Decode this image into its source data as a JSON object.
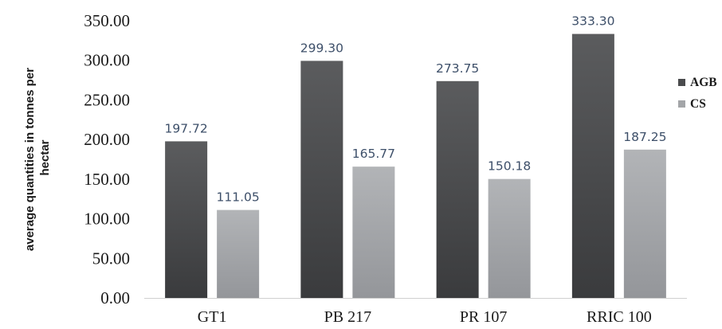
{
  "chart_data": {
    "type": "bar",
    "title": "",
    "xlabel": "",
    "ylabel": [
      "average quantities in tonnes per",
      "hectar"
    ],
    "categories": [
      "GT1",
      "PB 217",
      "PR 107",
      "RRIC 100"
    ],
    "series": [
      {
        "name": "AGB",
        "color": "#4a4b4d",
        "values": [
          197.72,
          299.3,
          273.75,
          333.3
        ],
        "labels": [
          "197.72",
          "299.30",
          "273.75",
          "333.30"
        ]
      },
      {
        "name": "CS",
        "color": "#a3a5a8",
        "values": [
          111.05,
          165.77,
          150.18,
          187.25
        ],
        "labels": [
          "111.05",
          "165.77",
          "150.18",
          "187.25"
        ]
      }
    ],
    "ylim": [
      0,
      350
    ],
    "yticks": [
      "0.00",
      "50.00",
      "100.00",
      "150.00",
      "200.00",
      "250.00",
      "300.00",
      "350.00"
    ],
    "grid": false,
    "legend_position": "right"
  }
}
